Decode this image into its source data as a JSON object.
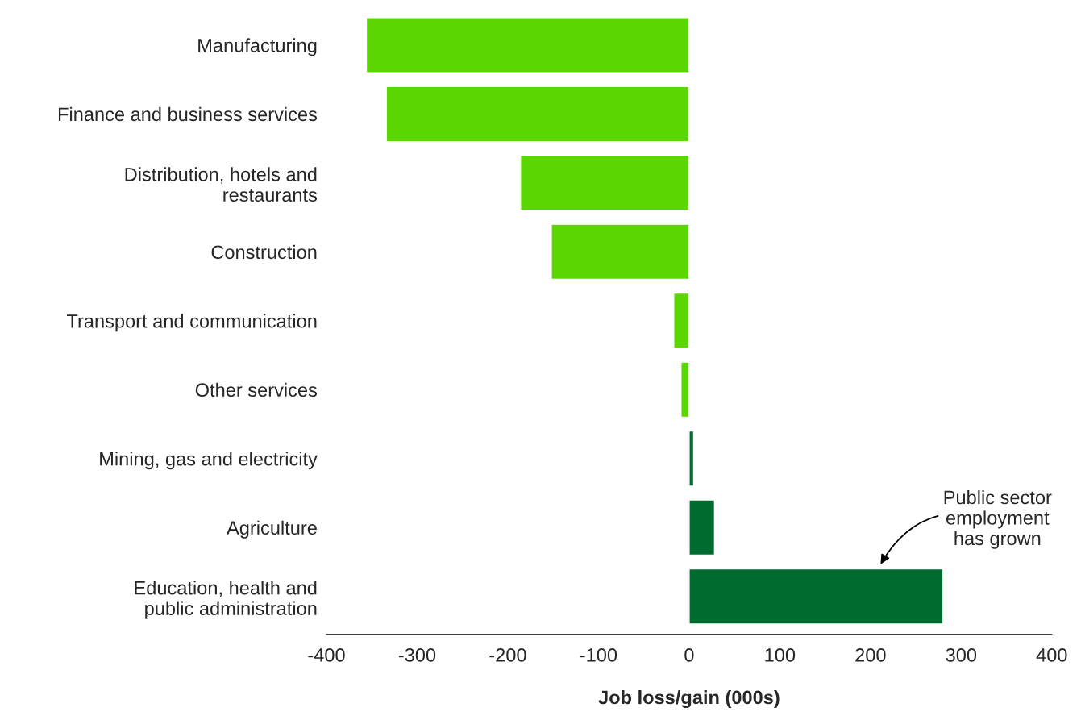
{
  "chart_data": {
    "type": "bar",
    "orientation": "horizontal",
    "categories": [
      "Manufacturing",
      "Finance and business services",
      "Distribution, hotels and\nrestaurants",
      "Construction",
      "Transport and communication",
      "Other services",
      "Mining, gas and electricity",
      "Agriculture",
      "Education, health and\npublic administration"
    ],
    "values": [
      -356,
      -334,
      -186,
      -152,
      -17,
      -9,
      5,
      28,
      280
    ],
    "colors": [
      "#5cd600",
      "#5cd600",
      "#5cd600",
      "#5cd600",
      "#5cd600",
      "#5cd600",
      "#006b2f",
      "#006b2f",
      "#006b2f"
    ],
    "xlabel": "Job loss/gain (000s)",
    "xlim": [
      -400,
      400
    ],
    "xticks": [
      -400,
      -300,
      -200,
      -100,
      0,
      100,
      200,
      300,
      400
    ],
    "grid": false,
    "legend": false,
    "annotations": [
      "Public sector\nemployment\nhas grown"
    ]
  }
}
